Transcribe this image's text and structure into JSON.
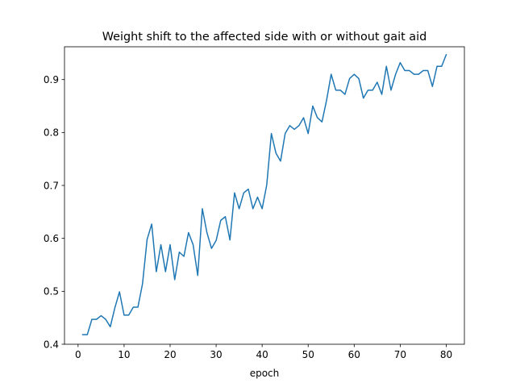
{
  "chart_data": {
    "type": "line",
    "title": "Weight shift to the affected side with or without gait aid",
    "xlabel": "epoch",
    "ylabel": "",
    "xlim": [
      -2.95,
      83.95
    ],
    "ylim": [
      0.4,
      0.962
    ],
    "xticks": [
      0,
      10,
      20,
      30,
      40,
      50,
      60,
      70,
      80
    ],
    "yticks": [
      0.4,
      0.5,
      0.6,
      0.7,
      0.8,
      0.9
    ],
    "ytick_labels": [
      "0.4",
      "0.5",
      "0.6",
      "0.7",
      "0.8",
      "0.9"
    ],
    "grid": false,
    "legend": false,
    "series": [
      {
        "color": "#1f77b4",
        "x": [
          1,
          2,
          3,
          4,
          5,
          6,
          7,
          8,
          9,
          10,
          11,
          12,
          13,
          14,
          15,
          16,
          17,
          18,
          19,
          20,
          21,
          22,
          23,
          24,
          25,
          26,
          27,
          28,
          29,
          30,
          31,
          32,
          33,
          34,
          35,
          36,
          37,
          38,
          39,
          40,
          41,
          42,
          43,
          44,
          45,
          46,
          47,
          48,
          49,
          50,
          51,
          52,
          53,
          54,
          55,
          56,
          57,
          58,
          59,
          60,
          61,
          62,
          63,
          64,
          65,
          66,
          67,
          68,
          69,
          70,
          71,
          72,
          73,
          74,
          75,
          76,
          77,
          78,
          79,
          80
        ],
        "values": [
          0.418,
          0.418,
          0.447,
          0.447,
          0.454,
          0.447,
          0.433,
          0.469,
          0.499,
          0.455,
          0.455,
          0.47,
          0.47,
          0.514,
          0.598,
          0.627,
          0.537,
          0.588,
          0.537,
          0.588,
          0.522,
          0.574,
          0.566,
          0.611,
          0.588,
          0.53,
          0.656,
          0.611,
          0.581,
          0.596,
          0.634,
          0.641,
          0.597,
          0.686,
          0.656,
          0.686,
          0.693,
          0.656,
          0.678,
          0.656,
          0.701,
          0.798,
          0.761,
          0.746,
          0.798,
          0.813,
          0.806,
          0.813,
          0.828,
          0.798,
          0.85,
          0.828,
          0.82,
          0.861,
          0.91,
          0.88,
          0.88,
          0.872,
          0.902,
          0.91,
          0.902,
          0.865,
          0.88,
          0.88,
          0.895,
          0.872,
          0.925,
          0.88,
          0.91,
          0.932,
          0.917,
          0.917,
          0.91,
          0.91,
          0.917,
          0.917,
          0.887,
          0.925,
          0.925,
          0.947
        ]
      }
    ]
  }
}
